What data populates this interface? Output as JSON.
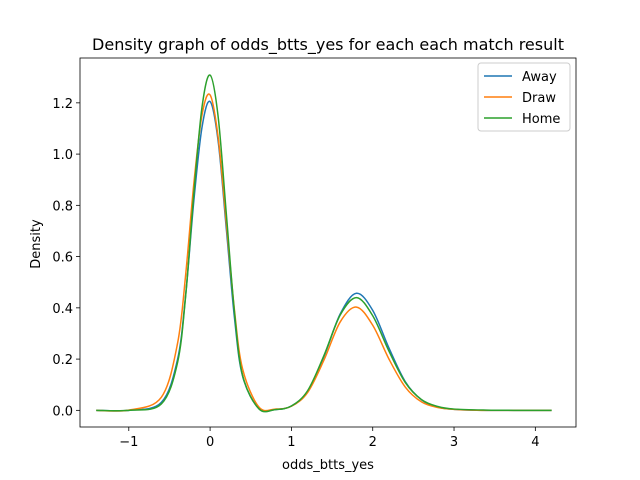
{
  "chart_data": {
    "type": "line",
    "title": "Density graph of odds_btts_yes for each each match result",
    "xlabel": "odds_btts_yes",
    "ylabel": "Density",
    "xlim": [
      -1.6,
      4.5
    ],
    "ylim": [
      -0.065,
      1.375
    ],
    "xticks": [
      -1,
      0,
      1,
      2,
      3,
      4
    ],
    "xtick_labels": [
      "−1",
      "0",
      "1",
      "2",
      "3",
      "4"
    ],
    "yticks": [
      0.0,
      0.2,
      0.4,
      0.6,
      0.8,
      1.0,
      1.2
    ],
    "ytick_labels": [
      "0.0",
      "0.2",
      "0.4",
      "0.6",
      "0.8",
      "1.0",
      "1.2"
    ],
    "grid": false,
    "legend_position": "top-right",
    "x": [
      -1.4,
      -1.0,
      -0.6,
      -0.4,
      -0.3,
      -0.2,
      -0.1,
      0.0,
      0.1,
      0.2,
      0.3,
      0.4,
      0.6,
      0.8,
      1.0,
      1.2,
      1.4,
      1.6,
      1.8,
      2.0,
      2.2,
      2.4,
      2.6,
      2.8,
      3.0,
      3.4,
      3.8,
      4.2
    ],
    "series": [
      {
        "name": "Away",
        "color": "#1f77b4",
        "values": [
          0.0,
          0.0,
          0.031,
          0.199,
          0.452,
          0.818,
          1.104,
          1.205,
          1.048,
          0.707,
          0.36,
          0.133,
          0.007,
          0.003,
          0.017,
          0.074,
          0.21,
          0.376,
          0.457,
          0.39,
          0.243,
          0.112,
          0.041,
          0.013,
          0.004,
          0.0,
          0.0,
          0.0
        ]
      },
      {
        "name": "Draw",
        "color": "#ff7f0e",
        "values": [
          0.0,
          0.001,
          0.051,
          0.262,
          0.531,
          0.885,
          1.152,
          1.231,
          1.063,
          0.73,
          0.39,
          0.161,
          0.013,
          0.005,
          0.016,
          0.07,
          0.196,
          0.345,
          0.403,
          0.332,
          0.2,
          0.091,
          0.033,
          0.011,
          0.004,
          0.0,
          0.0,
          0.0
        ]
      },
      {
        "name": "Home",
        "color": "#2ca02c",
        "values": [
          0.0,
          0.0,
          0.025,
          0.187,
          0.449,
          0.846,
          1.182,
          1.308,
          1.143,
          0.765,
          0.382,
          0.136,
          0.006,
          0.003,
          0.017,
          0.077,
          0.214,
          0.372,
          0.44,
          0.369,
          0.231,
          0.109,
          0.042,
          0.015,
          0.005,
          0.001,
          0.0,
          0.0
        ]
      }
    ]
  }
}
